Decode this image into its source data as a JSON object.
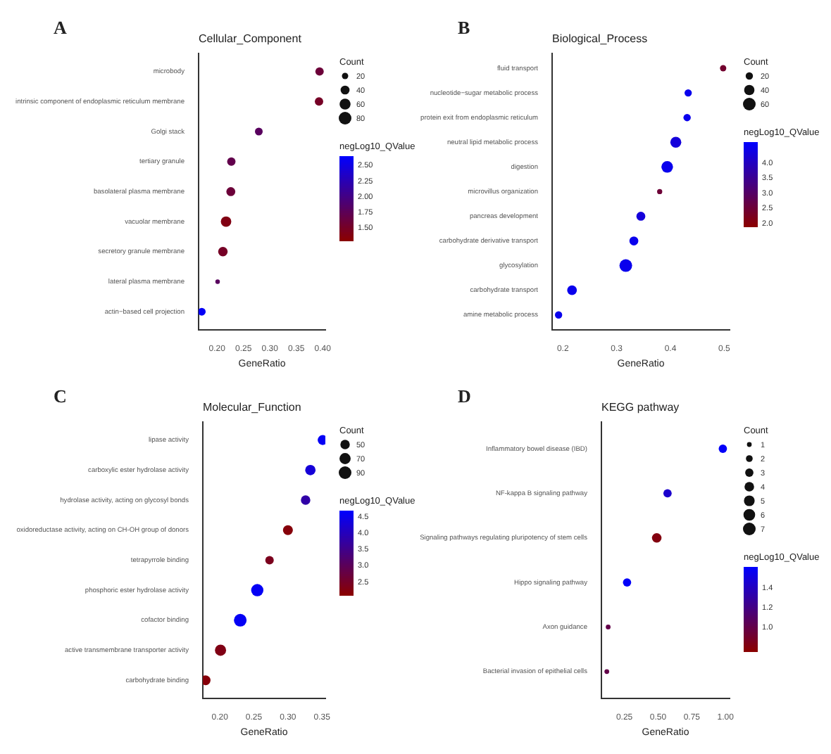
{
  "chart_data": [
    {
      "type": "bubble",
      "orientation": "horizontal",
      "title": "Cellular_Component",
      "annotations": [
        "A"
      ],
      "xlabel": "GeneRatio",
      "legend_title": "Count",
      "clabel": "negLog10_QValue",
      "categories": [
        "microbody",
        "intrinsic component of endoplasmic reticulum membrane",
        "Golgi stack",
        "tertiary granule",
        "basolateral plasma membrane",
        "vacuolar membrane",
        "secretory granule membrane",
        "lateral plasma membrane",
        "actin−based cell projection"
      ],
      "values": [
        0.394,
        0.393,
        0.279,
        0.227,
        0.226,
        0.217,
        0.211,
        0.201,
        0.171
      ],
      "sizes": [
        35,
        35,
        30,
        35,
        40,
        55,
        45,
        10,
        30
      ],
      "cvalues": [
        1.6,
        1.5,
        1.8,
        1.7,
        1.6,
        1.4,
        1.5,
        1.8,
        2.6
      ],
      "size_legend": [
        20,
        40,
        60,
        80
      ],
      "clim": [
        1.3,
        2.65
      ],
      "cticks": [
        {
          "value": 1.5,
          "label": "1.50"
        },
        {
          "value": 1.75,
          "label": "1.75"
        },
        {
          "value": 2,
          "label": "2.00"
        },
        {
          "value": 2.25,
          "label": "2.25"
        },
        {
          "value": 2.5,
          "label": "2.50"
        }
      ],
      "xlim": [
        0.165,
        0.405
      ],
      "xticks": [
        {
          "value": 0.2,
          "label": "0.20"
        },
        {
          "value": 0.25,
          "label": "0.25"
        },
        {
          "value": 0.3,
          "label": "0.30"
        },
        {
          "value": 0.35,
          "label": "0.35"
        },
        {
          "value": 0.4,
          "label": "0.40"
        }
      ]
    },
    {
      "type": "bubble",
      "orientation": "horizontal",
      "title": "Biological_Process",
      "annotations": [
        "B"
      ],
      "xlabel": "GeneRatio",
      "legend_title": "Count",
      "clabel": "negLog10_QValue",
      "categories": [
        "fluid transport",
        "nucleotide−sugar metabolic process",
        "protein exit from endoplasmic reticulum",
        "neutral lipid metabolic process",
        "digestion",
        "microvillus organization",
        "pancreas development",
        "carbohydrate derivative transport",
        "glycosylation",
        "carbohydrate transport",
        "amine metabolic process"
      ],
      "values": [
        0.498,
        0.433,
        0.431,
        0.41,
        0.394,
        0.38,
        0.345,
        0.332,
        0.317,
        0.217,
        0.192
      ],
      "sizes": [
        15,
        20,
        20,
        45,
        50,
        10,
        30,
        30,
        60,
        35,
        20
      ],
      "cvalues": [
        2.4,
        4.5,
        4.5,
        4.3,
        4.5,
        2.5,
        4.3,
        4.5,
        4.5,
        4.5,
        4.5
      ],
      "size_legend": [
        20,
        40,
        60
      ],
      "clim": [
        1.9,
        4.7
      ],
      "cticks": [
        {
          "value": 2,
          "label": "2.0"
        },
        {
          "value": 2.5,
          "label": "2.5"
        },
        {
          "value": 3,
          "label": "3.0"
        },
        {
          "value": 3.5,
          "label": "3.5"
        },
        {
          "value": 4,
          "label": "4.0"
        }
      ],
      "xlim": [
        0.18,
        0.51
      ],
      "xticks": [
        0.2,
        0.3,
        0.4,
        0.5
      ]
    },
    {
      "type": "bubble",
      "orientation": "horizontal",
      "title": "Molecular_Function",
      "annotations": [
        "C"
      ],
      "xlabel": "GeneRatio",
      "legend_title": "Count",
      "clabel": "negLog10_QValue",
      "categories": [
        "lipase activity",
        "carboxylic ester hydrolase activity",
        "hydrolase activity, acting on glycosyl bonds",
        "oxidoreductase activity, acting on CH-OH group of donors",
        "tetrapyrrole binding",
        "phosphoric ester hydrolase activity",
        "cofactor binding",
        "active transmembrane transporter activity",
        "carbohydrate binding"
      ],
      "values": [
        0.351,
        0.333,
        0.326,
        0.3,
        0.273,
        0.255,
        0.23,
        0.201,
        0.179
      ],
      "sizes": [
        55,
        60,
        50,
        55,
        40,
        85,
        90,
        70,
        55
      ],
      "cvalues": [
        4.6,
        4.3,
        3.8,
        2.2,
        2.4,
        4.6,
        4.6,
        2.3,
        2.2
      ],
      "size_legend": [
        50,
        70,
        90
      ],
      "clim": [
        2.1,
        4.7
      ],
      "cticks": [
        {
          "value": 2.5,
          "label": "2.5"
        },
        {
          "value": 3,
          "label": "3.0"
        },
        {
          "value": 3.5,
          "label": "3.5"
        },
        {
          "value": 4,
          "label": "4.0"
        },
        {
          "value": 4.5,
          "label": "4.5"
        }
      ],
      "xlim": [
        0.175,
        0.355
      ],
      "xticks": [
        {
          "value": 0.2,
          "label": "0.20"
        },
        {
          "value": 0.25,
          "label": "0.25"
        },
        {
          "value": 0.3,
          "label": "0.30"
        },
        {
          "value": 0.35,
          "label": "0.35"
        }
      ]
    },
    {
      "type": "bubble",
      "orientation": "horizontal",
      "title": "KEGG pathway",
      "annotations": [
        "D"
      ],
      "xlabel": "GeneRatio",
      "legend_title": "Count",
      "clabel": "negLog10_QValue",
      "categories": [
        "Inflammatory bowel disease (IBD)",
        "NF-kappa B signaling pathway",
        "Signaling pathways regulating pluripotency of stem cells",
        "Hippo signaling pathway",
        "Axon guidance",
        "Bacterial invasion of epithelial cells"
      ],
      "values": [
        0.98,
        0.57,
        0.49,
        0.27,
        0.13,
        0.12
      ],
      "sizes": [
        3,
        3,
        4,
        3,
        1,
        1
      ],
      "cvalues": [
        1.6,
        1.45,
        0.8,
        1.6,
        1.0,
        1.0
      ],
      "size_legend": [
        1,
        2,
        3,
        4,
        5,
        6,
        7
      ],
      "clim": [
        0.75,
        1.62
      ],
      "cticks": [
        {
          "value": 1,
          "label": "1.0"
        },
        {
          "value": 1.2,
          "label": "1.2"
        },
        {
          "value": 1.4,
          "label": "1.4"
        }
      ],
      "xlim": [
        0.08,
        1.03
      ],
      "xticks": [
        0.25,
        {
          "value": 0.5,
          "label": "0.50"
        },
        0.75,
        {
          "value": 1,
          "label": "1.00"
        }
      ]
    }
  ]
}
